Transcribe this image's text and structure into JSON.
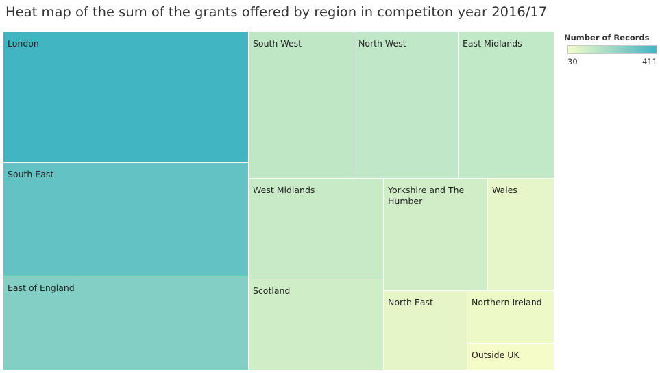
{
  "chart_data": {
    "type": "treemap",
    "title": "Heat map of the sum of the grants offered by region in competiton year 2016/17",
    "color_measure": "Number of Records",
    "color_range": [
      30,
      411
    ],
    "color_scale": [
      "#f5fcc8",
      "#42b5c3"
    ],
    "regions": [
      {
        "name": "London",
        "value": 411
      },
      {
        "name": "South East",
        "value": 340
      },
      {
        "name": "East of England",
        "value": 270
      },
      {
        "name": "South West",
        "value": 145
      },
      {
        "name": "North West",
        "value": 143
      },
      {
        "name": "East Midlands",
        "value": 140
      },
      {
        "name": "West Midlands",
        "value": 125
      },
      {
        "name": "Scotland",
        "value": 110
      },
      {
        "name": "Yorkshire and The Humber",
        "value": 108
      },
      {
        "name": "Wales",
        "value": 60
      },
      {
        "name": "North East",
        "value": 65
      },
      {
        "name": "Northern Ireland",
        "value": 45
      },
      {
        "name": "Outside UK",
        "value": 30
      }
    ]
  },
  "legend": {
    "title": "Number of Records",
    "min_label": "30",
    "max_label": "411"
  }
}
